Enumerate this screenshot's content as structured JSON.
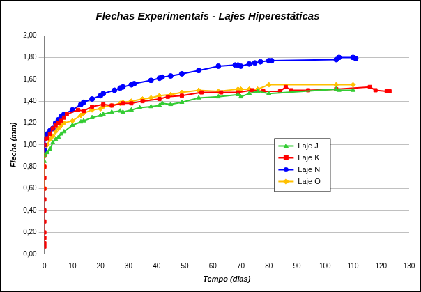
{
  "chart_data": {
    "type": "line",
    "title": "Flechas Experimentais - Lajes Hiperestáticas",
    "x_label": "Tempo (dias)",
    "y_label": "Flecha (mm)",
    "xlim": [
      0,
      130
    ],
    "xticks": [
      0,
      10,
      20,
      30,
      40,
      50,
      60,
      70,
      80,
      90,
      100,
      110,
      120,
      130
    ],
    "ylim": [
      0,
      2
    ],
    "yticks": [
      {
        "value": 0,
        "label": "0,00"
      },
      {
        "value": 0.2,
        "label": "0,20"
      },
      {
        "value": 0.4,
        "label": "0,40"
      },
      {
        "value": 0.6,
        "label": "0,60"
      },
      {
        "value": 0.8,
        "label": "0,80"
      },
      {
        "value": 1,
        "label": "1,00"
      },
      {
        "value": 1.2,
        "label": "1,20"
      },
      {
        "value": 1.4,
        "label": "1,40"
      },
      {
        "value": 1.6,
        "label": "1,60"
      },
      {
        "value": 1.8,
        "label": "1,80"
      },
      {
        "value": 2,
        "label": "2,00"
      }
    ],
    "grid": true,
    "legend": "right",
    "series": [
      {
        "name": "Laje J",
        "color": "#33cc33",
        "marker": "triangle",
        "line_style": "solid",
        "x": [
          0,
          0,
          1,
          2,
          3,
          4,
          5,
          6,
          7,
          10,
          13,
          14,
          17,
          20,
          21,
          24,
          27,
          28,
          31,
          34,
          38,
          41,
          42,
          45,
          49,
          55,
          62,
          69,
          70,
          73,
          76,
          80,
          104,
          105,
          110
        ],
        "values": [
          0.85,
          0.9,
          0.93,
          0.96,
          1.02,
          1.05,
          1.07,
          1.1,
          1.12,
          1.18,
          1.21,
          1.22,
          1.25,
          1.27,
          1.28,
          1.3,
          1.31,
          1.3,
          1.32,
          1.34,
          1.35,
          1.36,
          1.38,
          1.37,
          1.39,
          1.43,
          1.44,
          1.46,
          1.44,
          1.47,
          1.49,
          1.47,
          1.51,
          1.5,
          1.5
        ]
      },
      {
        "name": "Laje K",
        "color": "#ff0000",
        "marker": "square",
        "line_style": "solid",
        "x": [
          0,
          0,
          0,
          0,
          0,
          0,
          0,
          0,
          0,
          0,
          0,
          0,
          0,
          1,
          2,
          3,
          4,
          5,
          6,
          7,
          8,
          12,
          14,
          17,
          21,
          24,
          28,
          31,
          35,
          41,
          44,
          49,
          56,
          63,
          69,
          74,
          78,
          84,
          86,
          88,
          94,
          104,
          116,
          118,
          122,
          123
        ],
        "values": [
          0.07,
          0.1,
          0.15,
          0.2,
          0.3,
          0.4,
          0.5,
          0.6,
          0.7,
          0.8,
          0.9,
          1.0,
          1.05,
          1.06,
          1.1,
          1.15,
          1.18,
          1.2,
          1.22,
          1.25,
          1.28,
          1.32,
          1.31,
          1.35,
          1.37,
          1.36,
          1.38,
          1.38,
          1.4,
          1.42,
          1.44,
          1.45,
          1.48,
          1.48,
          1.48,
          1.5,
          1.49,
          1.49,
          1.53,
          1.5,
          1.5,
          1.51,
          1.53,
          1.5,
          1.49,
          1.49
        ]
      },
      {
        "name": "Laje N",
        "color": "#0000ff",
        "marker": "circle",
        "line_style": "solid",
        "x": [
          0,
          0,
          0,
          1,
          2,
          3,
          4,
          5,
          6,
          7,
          10,
          13,
          14,
          17,
          20,
          21,
          25,
          27,
          28,
          31,
          32,
          38,
          41,
          42,
          45,
          49,
          55,
          62,
          68,
          69,
          70,
          73,
          75,
          77,
          80,
          81,
          104,
          105,
          110,
          111
        ],
        "values": [
          0.95,
          1.0,
          1.05,
          1.1,
          1.13,
          1.15,
          1.2,
          1.23,
          1.26,
          1.28,
          1.32,
          1.37,
          1.39,
          1.42,
          1.45,
          1.47,
          1.5,
          1.52,
          1.53,
          1.55,
          1.56,
          1.59,
          1.61,
          1.62,
          1.63,
          1.65,
          1.68,
          1.72,
          1.73,
          1.73,
          1.72,
          1.74,
          1.75,
          1.76,
          1.77,
          1.77,
          1.78,
          1.8,
          1.8,
          1.79
        ]
      },
      {
        "name": "Laje O",
        "color": "#ffc000",
        "marker": "diamond",
        "line_style": "solid",
        "x": [
          0,
          0,
          0,
          1,
          2,
          3,
          4,
          5,
          6,
          7,
          10,
          13,
          14,
          17,
          20,
          21,
          24,
          27,
          28,
          31,
          35,
          38,
          41,
          45,
          49,
          55,
          62,
          69,
          70,
          73,
          76,
          80,
          104,
          110
        ],
        "values": [
          0.6,
          0.8,
          0.9,
          1.0,
          1.05,
          1.08,
          1.12,
          1.15,
          1.18,
          1.2,
          1.22,
          1.27,
          1.29,
          1.32,
          1.33,
          1.35,
          1.36,
          1.38,
          1.39,
          1.4,
          1.42,
          1.43,
          1.45,
          1.46,
          1.48,
          1.5,
          1.49,
          1.51,
          1.51,
          1.51,
          1.51,
          1.55,
          1.55,
          1.55
        ]
      }
    ]
  }
}
